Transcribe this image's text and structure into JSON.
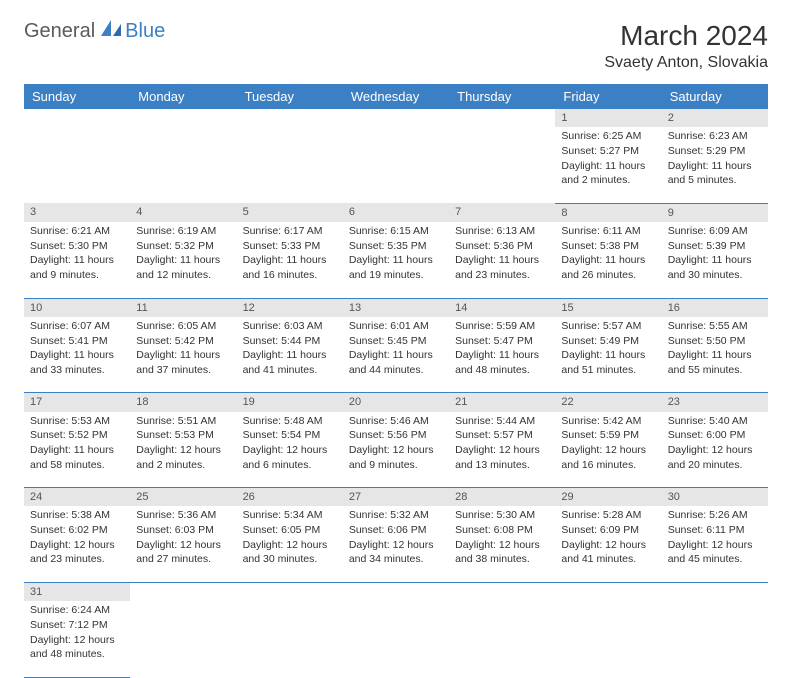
{
  "logo": {
    "text1": "General",
    "text2": "Blue"
  },
  "title": "March 2024",
  "location": "Svaety Anton, Slovakia",
  "colors": {
    "header_bg": "#3b7fc4",
    "header_fg": "#ffffff",
    "daynum_bg": "#e6e6e6",
    "row_border": "#3b7fc4",
    "text": "#333333"
  },
  "day_headers": [
    "Sunday",
    "Monday",
    "Tuesday",
    "Wednesday",
    "Thursday",
    "Friday",
    "Saturday"
  ],
  "weeks": [
    [
      null,
      null,
      null,
      null,
      null,
      {
        "n": "1",
        "sr": "Sunrise: 6:25 AM",
        "ss": "Sunset: 5:27 PM",
        "dl1": "Daylight: 11 hours",
        "dl2": "and 2 minutes."
      },
      {
        "n": "2",
        "sr": "Sunrise: 6:23 AM",
        "ss": "Sunset: 5:29 PM",
        "dl1": "Daylight: 11 hours",
        "dl2": "and 5 minutes."
      }
    ],
    [
      {
        "n": "3",
        "sr": "Sunrise: 6:21 AM",
        "ss": "Sunset: 5:30 PM",
        "dl1": "Daylight: 11 hours",
        "dl2": "and 9 minutes."
      },
      {
        "n": "4",
        "sr": "Sunrise: 6:19 AM",
        "ss": "Sunset: 5:32 PM",
        "dl1": "Daylight: 11 hours",
        "dl2": "and 12 minutes."
      },
      {
        "n": "5",
        "sr": "Sunrise: 6:17 AM",
        "ss": "Sunset: 5:33 PM",
        "dl1": "Daylight: 11 hours",
        "dl2": "and 16 minutes."
      },
      {
        "n": "6",
        "sr": "Sunrise: 6:15 AM",
        "ss": "Sunset: 5:35 PM",
        "dl1": "Daylight: 11 hours",
        "dl2": "and 19 minutes."
      },
      {
        "n": "7",
        "sr": "Sunrise: 6:13 AM",
        "ss": "Sunset: 5:36 PM",
        "dl1": "Daylight: 11 hours",
        "dl2": "and 23 minutes."
      },
      {
        "n": "8",
        "sr": "Sunrise: 6:11 AM",
        "ss": "Sunset: 5:38 PM",
        "dl1": "Daylight: 11 hours",
        "dl2": "and 26 minutes."
      },
      {
        "n": "9",
        "sr": "Sunrise: 6:09 AM",
        "ss": "Sunset: 5:39 PM",
        "dl1": "Daylight: 11 hours",
        "dl2": "and 30 minutes."
      }
    ],
    [
      {
        "n": "10",
        "sr": "Sunrise: 6:07 AM",
        "ss": "Sunset: 5:41 PM",
        "dl1": "Daylight: 11 hours",
        "dl2": "and 33 minutes."
      },
      {
        "n": "11",
        "sr": "Sunrise: 6:05 AM",
        "ss": "Sunset: 5:42 PM",
        "dl1": "Daylight: 11 hours",
        "dl2": "and 37 minutes."
      },
      {
        "n": "12",
        "sr": "Sunrise: 6:03 AM",
        "ss": "Sunset: 5:44 PM",
        "dl1": "Daylight: 11 hours",
        "dl2": "and 41 minutes."
      },
      {
        "n": "13",
        "sr": "Sunrise: 6:01 AM",
        "ss": "Sunset: 5:45 PM",
        "dl1": "Daylight: 11 hours",
        "dl2": "and 44 minutes."
      },
      {
        "n": "14",
        "sr": "Sunrise: 5:59 AM",
        "ss": "Sunset: 5:47 PM",
        "dl1": "Daylight: 11 hours",
        "dl2": "and 48 minutes."
      },
      {
        "n": "15",
        "sr": "Sunrise: 5:57 AM",
        "ss": "Sunset: 5:49 PM",
        "dl1": "Daylight: 11 hours",
        "dl2": "and 51 minutes."
      },
      {
        "n": "16",
        "sr": "Sunrise: 5:55 AM",
        "ss": "Sunset: 5:50 PM",
        "dl1": "Daylight: 11 hours",
        "dl2": "and 55 minutes."
      }
    ],
    [
      {
        "n": "17",
        "sr": "Sunrise: 5:53 AM",
        "ss": "Sunset: 5:52 PM",
        "dl1": "Daylight: 11 hours",
        "dl2": "and 58 minutes."
      },
      {
        "n": "18",
        "sr": "Sunrise: 5:51 AM",
        "ss": "Sunset: 5:53 PM",
        "dl1": "Daylight: 12 hours",
        "dl2": "and 2 minutes."
      },
      {
        "n": "19",
        "sr": "Sunrise: 5:48 AM",
        "ss": "Sunset: 5:54 PM",
        "dl1": "Daylight: 12 hours",
        "dl2": "and 6 minutes."
      },
      {
        "n": "20",
        "sr": "Sunrise: 5:46 AM",
        "ss": "Sunset: 5:56 PM",
        "dl1": "Daylight: 12 hours",
        "dl2": "and 9 minutes."
      },
      {
        "n": "21",
        "sr": "Sunrise: 5:44 AM",
        "ss": "Sunset: 5:57 PM",
        "dl1": "Daylight: 12 hours",
        "dl2": "and 13 minutes."
      },
      {
        "n": "22",
        "sr": "Sunrise: 5:42 AM",
        "ss": "Sunset: 5:59 PM",
        "dl1": "Daylight: 12 hours",
        "dl2": "and 16 minutes."
      },
      {
        "n": "23",
        "sr": "Sunrise: 5:40 AM",
        "ss": "Sunset: 6:00 PM",
        "dl1": "Daylight: 12 hours",
        "dl2": "and 20 minutes."
      }
    ],
    [
      {
        "n": "24",
        "sr": "Sunrise: 5:38 AM",
        "ss": "Sunset: 6:02 PM",
        "dl1": "Daylight: 12 hours",
        "dl2": "and 23 minutes."
      },
      {
        "n": "25",
        "sr": "Sunrise: 5:36 AM",
        "ss": "Sunset: 6:03 PM",
        "dl1": "Daylight: 12 hours",
        "dl2": "and 27 minutes."
      },
      {
        "n": "26",
        "sr": "Sunrise: 5:34 AM",
        "ss": "Sunset: 6:05 PM",
        "dl1": "Daylight: 12 hours",
        "dl2": "and 30 minutes."
      },
      {
        "n": "27",
        "sr": "Sunrise: 5:32 AM",
        "ss": "Sunset: 6:06 PM",
        "dl1": "Daylight: 12 hours",
        "dl2": "and 34 minutes."
      },
      {
        "n": "28",
        "sr": "Sunrise: 5:30 AM",
        "ss": "Sunset: 6:08 PM",
        "dl1": "Daylight: 12 hours",
        "dl2": "and 38 minutes."
      },
      {
        "n": "29",
        "sr": "Sunrise: 5:28 AM",
        "ss": "Sunset: 6:09 PM",
        "dl1": "Daylight: 12 hours",
        "dl2": "and 41 minutes."
      },
      {
        "n": "30",
        "sr": "Sunrise: 5:26 AM",
        "ss": "Sunset: 6:11 PM",
        "dl1": "Daylight: 12 hours",
        "dl2": "and 45 minutes."
      }
    ],
    [
      {
        "n": "31",
        "sr": "Sunrise: 6:24 AM",
        "ss": "Sunset: 7:12 PM",
        "dl1": "Daylight: 12 hours",
        "dl2": "and 48 minutes."
      },
      null,
      null,
      null,
      null,
      null,
      null
    ]
  ]
}
